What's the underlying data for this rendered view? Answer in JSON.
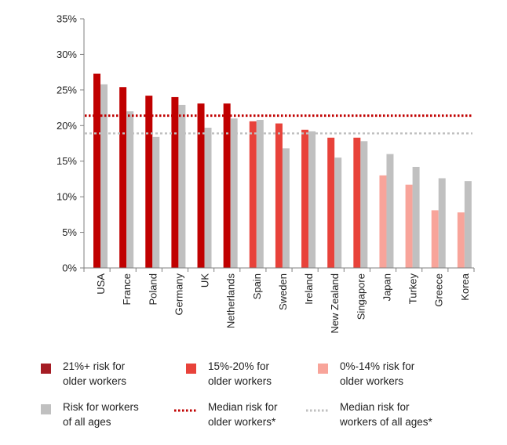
{
  "chart_data": {
    "type": "bar",
    "categories": [
      "USA",
      "France",
      "Poland",
      "Germany",
      "UK",
      "Netherlands",
      "Spain",
      "Sweden",
      "Ireland",
      "New Zealand",
      "Singapore",
      "Japan",
      "Turkey",
      "Greece",
      "Korea"
    ],
    "series": [
      {
        "name": "Risk for older workers",
        "values": [
          27.3,
          25.4,
          24.2,
          24.0,
          23.1,
          23.1,
          20.6,
          20.3,
          19.4,
          18.3,
          18.3,
          13.0,
          11.7,
          8.1,
          7.8
        ],
        "colors": [
          "#c00000",
          "#c00000",
          "#c00000",
          "#c00000",
          "#c00000",
          "#c00000",
          "#e8423a",
          "#e8423a",
          "#e8423a",
          "#e8423a",
          "#e8423a",
          "#f8a49a",
          "#f8a49a",
          "#f8a49a",
          "#f8a49a"
        ]
      },
      {
        "name": "Risk for workers of all ages",
        "values": [
          25.8,
          22.0,
          18.4,
          22.9,
          19.7,
          21.0,
          20.8,
          16.8,
          19.2,
          15.5,
          17.8,
          16.0,
          14.2,
          12.6,
          12.2
        ],
        "color": "#c0c0c0"
      }
    ],
    "reference_lines": [
      {
        "label": "Median risk for older workers*",
        "value": 21.4,
        "color": "#c00000",
        "style": "dotted"
      },
      {
        "label": "Median risk for workers of all ages*",
        "value": 18.9,
        "color": "#c0c0c0",
        "style": "dotted"
      }
    ],
    "yticks": [
      "0%",
      "5%",
      "10%",
      "15%",
      "20%",
      "25%",
      "30%",
      "35%"
    ],
    "ylim": [
      0,
      35
    ],
    "grid": false,
    "legend": {
      "placement": "bottom",
      "items": [
        {
          "lines": [
            "21%+ risk for",
            "older workers"
          ],
          "swatch": "square",
          "color": "#a51c24"
        },
        {
          "lines": [
            "15%-20% for",
            "older workers"
          ],
          "swatch": "square",
          "color": "#e8423a"
        },
        {
          "lines": [
            "0%-14% risk for",
            "older workers"
          ],
          "swatch": "square",
          "color": "#f8a49a"
        },
        {
          "lines": [
            "Risk for workers",
            "of all ages"
          ],
          "swatch": "square",
          "color": "#c0c0c0"
        },
        {
          "lines": [
            "Median risk for",
            "older workers*"
          ],
          "swatch": "dotted",
          "color": "#c00000"
        },
        {
          "lines": [
            "Median risk for",
            "workers of all ages*"
          ],
          "swatch": "dotted",
          "color": "#c0c0c0"
        }
      ]
    }
  }
}
